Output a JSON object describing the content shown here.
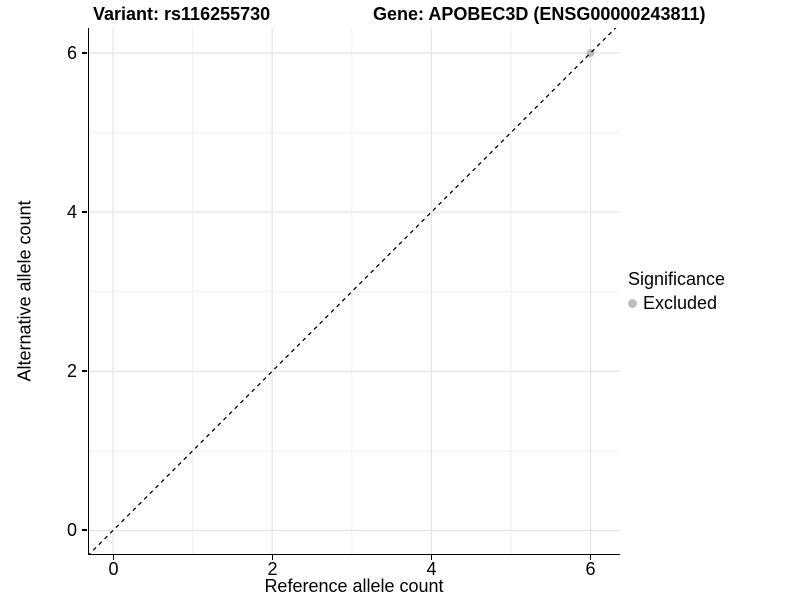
{
  "chart_data": {
    "type": "scatter",
    "title_left": "Variant: rs116255730",
    "title_right": "Gene: APOBEC3D (ENSG00000243811)",
    "xlabel": "Reference allele count",
    "ylabel": "Alternative allele count",
    "xlim": [
      -0.32,
      6.35
    ],
    "ylim": [
      -0.32,
      6.35
    ],
    "x_ticks": [
      0,
      2,
      4,
      6
    ],
    "y_ticks": [
      0,
      2,
      4,
      6
    ],
    "x_minor_gridlines": [
      1,
      3,
      5
    ],
    "y_minor_gridlines": [
      1,
      3,
      5
    ],
    "grid": "major and minor light-gray gridlines on white panel",
    "series": [
      {
        "name": "Excluded",
        "marker": "circle",
        "color": "#bebebe",
        "points": [
          {
            "x": 6,
            "y": 6
          }
        ]
      }
    ],
    "reference_line": {
      "equation": "y = x",
      "style": "dashed",
      "color": "#000000",
      "from": [
        -0.32,
        -0.32
      ],
      "to": [
        6.35,
        6.35
      ]
    },
    "legend": {
      "position": "right",
      "title": "Significance",
      "items": [
        {
          "label": "Excluded",
          "color": "#bebebe"
        }
      ]
    }
  },
  "colors": {
    "background": "#ffffff",
    "axis_line": "#000000",
    "grid_major": "#e4e4e4",
    "grid_minor": "#f0f0f0",
    "text": "#000000",
    "excluded_point": "#bebebe"
  }
}
